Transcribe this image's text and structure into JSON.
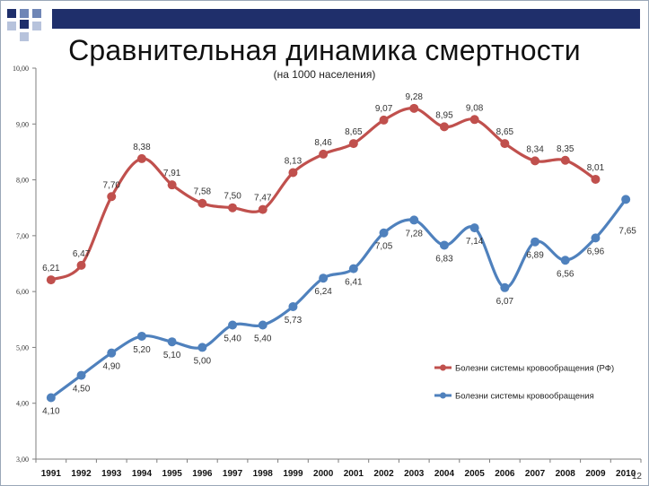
{
  "slide": {
    "title": "Сравнительная динамика смертности",
    "subtitle": "(на 1000 населения)",
    "page_number": "12"
  },
  "colors": {
    "red": "#c0504d",
    "blue": "#4f81bd",
    "navy": "#1f2f6b"
  },
  "chart_data": {
    "type": "line",
    "title": "Сравнительная динамика смертности",
    "subtitle": "(на 1000 населения)",
    "xlabel": "",
    "ylabel": "",
    "categories": [
      "1991",
      "1992",
      "1993",
      "1994",
      "1995",
      "1996",
      "1997",
      "1998",
      "1999",
      "2000",
      "2001",
      "2002",
      "2003",
      "2004",
      "2005",
      "2006",
      "2007",
      "2008",
      "2009",
      "2010"
    ],
    "ylim": [
      3,
      10
    ],
    "yticks": [
      "3,00",
      "4,00",
      "5,00",
      "6,00",
      "7,00",
      "8,00",
      "9,00",
      "10,00"
    ],
    "grid": false,
    "legend_position": "right",
    "series": [
      {
        "name": "Болезни системы кровообращения (РФ)",
        "color": "#c0504d",
        "values": [
          6.21,
          6.47,
          7.7,
          8.38,
          7.91,
          7.58,
          7.5,
          7.47,
          8.13,
          8.46,
          8.65,
          9.07,
          9.28,
          8.95,
          9.08,
          8.65,
          8.34,
          8.35,
          8.01,
          null
        ],
        "labels": [
          "6,21",
          "6,47",
          "7,70",
          "8,38",
          "7,91",
          "7,58",
          "7,50",
          "7,47",
          "8,13",
          "8,46",
          "8,65",
          "9,07",
          "9,28",
          "8,95",
          "9,08",
          "8,65",
          "8,34",
          "8,35",
          "8,01",
          ""
        ]
      },
      {
        "name": "Болезни системы кровообращения",
        "color": "#4f81bd",
        "values": [
          4.1,
          4.5,
          4.9,
          5.2,
          5.1,
          5.0,
          5.4,
          5.4,
          5.73,
          6.24,
          6.41,
          7.05,
          7.28,
          6.83,
          7.14,
          6.07,
          6.89,
          6.56,
          6.96,
          7.65
        ],
        "labels": [
          "4,10",
          "4,50",
          "4,90",
          "5,20",
          "5,10",
          "5,00",
          "5,40",
          "5,40",
          "5,73",
          "6,24",
          "6,41",
          "7,05",
          "7,28",
          "6,83",
          "7,14",
          "6,07",
          "6,89",
          "6,56",
          "6,96",
          "7,65"
        ]
      }
    ]
  }
}
